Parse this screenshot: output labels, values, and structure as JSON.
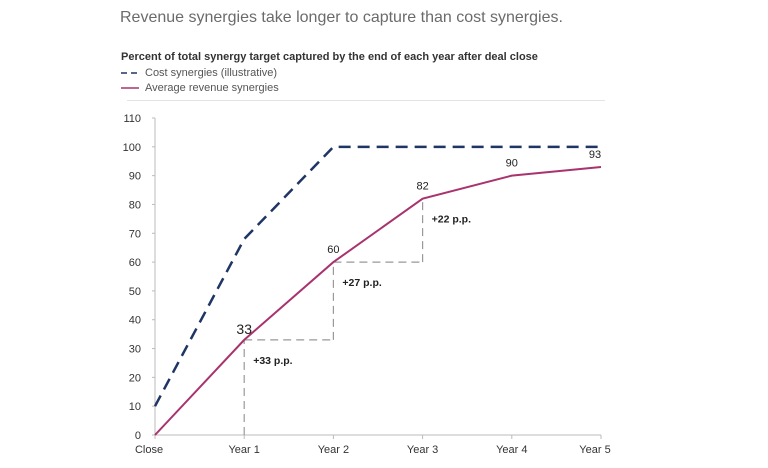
{
  "chart_data": {
    "type": "line",
    "title": "Revenue synergies take longer to capture than cost synergies.",
    "subtitle": "Percent of total synergy target captured by the end of each year after deal close",
    "categories": [
      "Close",
      "Year 1",
      "Year 2",
      "Year 3",
      "Year 4",
      "Year 5"
    ],
    "yticks": [
      "0",
      "10",
      "20",
      "30",
      "40",
      "50",
      "60",
      "70",
      "80",
      "90",
      "100",
      "110"
    ],
    "ylim": [
      0,
      110
    ],
    "series": [
      {
        "name": "Cost synergies (illustrative)",
        "values": [
          10,
          68,
          100,
          100,
          100,
          100
        ],
        "color": "#1f3564",
        "style": "dashed"
      },
      {
        "name": "Average revenue synergies",
        "values": [
          0,
          33,
          60,
          82,
          90,
          93
        ],
        "color": "#a8336e",
        "style": "solid",
        "data_labels": [
          "",
          "33",
          "60",
          "82",
          "90",
          "93"
        ]
      }
    ],
    "annotations": [
      {
        "text": "+33 p.p.",
        "from": 0,
        "to": 33,
        "at": "Year 1"
      },
      {
        "text": "+27 p.p.",
        "from": 33,
        "to": 60,
        "at": "Year 2"
      },
      {
        "text": "+22 p.p.",
        "from": 60,
        "to": 82,
        "at": "Year 3"
      }
    ],
    "legend": "top-left",
    "grid": false
  }
}
